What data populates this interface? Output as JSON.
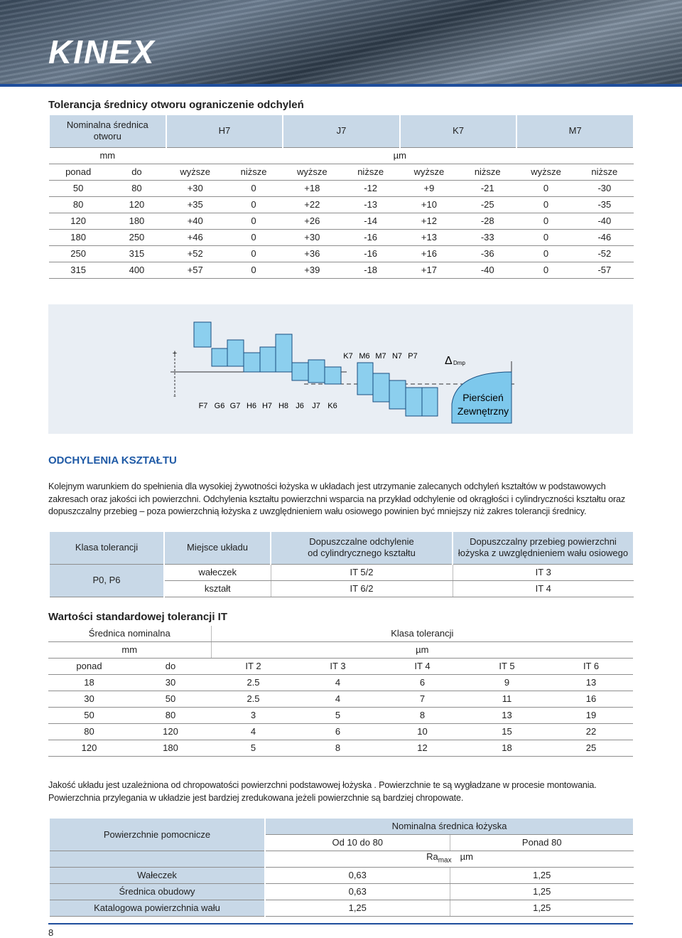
{
  "header": {
    "logo": "KINEX"
  },
  "section1": {
    "title": "Tolerancja średnicy otworu ograniczenie odchyleń",
    "table": {
      "head_label": "Nominalna średnica\notworu",
      "classes": [
        "H7",
        "J7",
        "K7",
        "M7"
      ],
      "unit_dim": "mm",
      "unit_dev": "µm",
      "columns": [
        "ponad",
        "do",
        "wyższe",
        "niższe",
        "wyższe",
        "niższe",
        "wyższe",
        "niższe",
        "wyższe",
        "niższe"
      ],
      "rows": [
        [
          "50",
          "80",
          "+30",
          "0",
          "+18",
          "-12",
          "+9",
          "-21",
          "0",
          "-30"
        ],
        [
          "80",
          "120",
          "+35",
          "0",
          "+22",
          "-13",
          "+10",
          "-25",
          "0",
          "-35"
        ],
        [
          "120",
          "180",
          "+40",
          "0",
          "+26",
          "-14",
          "+12",
          "-28",
          "0",
          "-40"
        ],
        [
          "180",
          "250",
          "+46",
          "0",
          "+30",
          "-16",
          "+13",
          "-33",
          "0",
          "-46"
        ],
        [
          "250",
          "315",
          "+52",
          "0",
          "+36",
          "-16",
          "+16",
          "-36",
          "0",
          "-52"
        ],
        [
          "315",
          "400",
          "+57",
          "0",
          "+39",
          "-18",
          "+17",
          "-40",
          "0",
          "-57"
        ]
      ]
    }
  },
  "diagram": {
    "plus": "+",
    "minus": "-",
    "upper_labels": [
      "K7",
      "M6",
      "M7",
      "N7",
      "P7"
    ],
    "lower_labels": [
      "F7",
      "G6",
      "G7",
      "H6",
      "H7",
      "H8",
      "J6",
      "J7",
      "K6"
    ],
    "delta": "Δ",
    "delta_sub": "Dmp",
    "ring": [
      "Pierścień",
      "Zewnętrzny"
    ]
  },
  "form": {
    "title": "ODCHYLENIA KSZTAŁTU",
    "text": "Kolejnym warunkiem do spełnienia dla wysokiej żywotności łożyska w układach jest utrzymanie zalecanych odchyleń kształtów w podstawowych zakresach oraz jakości ich powierzchni. Odchylenia kształtu powierzchni wsparcia na przykład odchylenie od okrągłości i cylindryczności kształtu oraz dopuszczalny przebieg – poza powierzchnią łożyska z uwzględnieniem wału osiowego powinien być mniejszy niż zakres tolerancji średnicy.",
    "table": {
      "headers": [
        "Klasa tolerancji",
        "Miejsce układu",
        "Dopuszczalne odchylenie\nod cylindrycznego kształtu",
        "Dopuszczalny przebieg powierzchni\nłożyska z uwzględnieniem wału osiowego"
      ],
      "class": "P0, P6",
      "rows": [
        [
          "wałeczek",
          "IT 5/2",
          "IT 3"
        ],
        [
          "kształt",
          "IT 6/2",
          "IT 4"
        ]
      ]
    }
  },
  "it": {
    "title": "Wartości standardowej tolerancji IT",
    "table": {
      "head_left": "Średnica nominalna",
      "head_right": "Klasa tolerancji",
      "unit_dim": "mm",
      "unit_dev": "µm",
      "columns": [
        "ponad",
        "do",
        "IT 2",
        "IT 3",
        "IT 4",
        "IT 5",
        "IT 6"
      ],
      "rows": [
        [
          "18",
          "30",
          "2.5",
          "4",
          "6",
          "9",
          "13"
        ],
        [
          "30",
          "50",
          "2.5",
          "4",
          "7",
          "11",
          "16"
        ],
        [
          "50",
          "80",
          "3",
          "5",
          "8",
          "13",
          "19"
        ],
        [
          "80",
          "120",
          "4",
          "6",
          "10",
          "15",
          "22"
        ],
        [
          "120",
          "180",
          "5",
          "8",
          "12",
          "18",
          "25"
        ]
      ]
    }
  },
  "roughness": {
    "text": "Jakość układu jest uzależniona od chropowatości powierzchni podstawowej łożyska . Powierzchnie te są wygładzane w procesie montowania. Powierzchnia przylegania w układzie jest bardziej zredukowana jeżeli powierzchnie są bardziej chropowate.",
    "table": {
      "head_left": "Powierzchnie pomocnicze",
      "head_right": "Nominalna średnica łożyska",
      "columns": [
        "Od 10 do 80",
        "Ponad 80"
      ],
      "unit": {
        "symbol": "Ra",
        "sub": "max",
        "unit": "µm"
      },
      "rows": [
        [
          "Wałeczek",
          "0,63",
          "1,25"
        ],
        [
          "Średnica obudowy",
          "0,63",
          "1,25"
        ],
        [
          "Katalogowa powierzchnia wału",
          "1,25",
          "1,25"
        ]
      ]
    }
  },
  "footer": {
    "page": "8"
  }
}
